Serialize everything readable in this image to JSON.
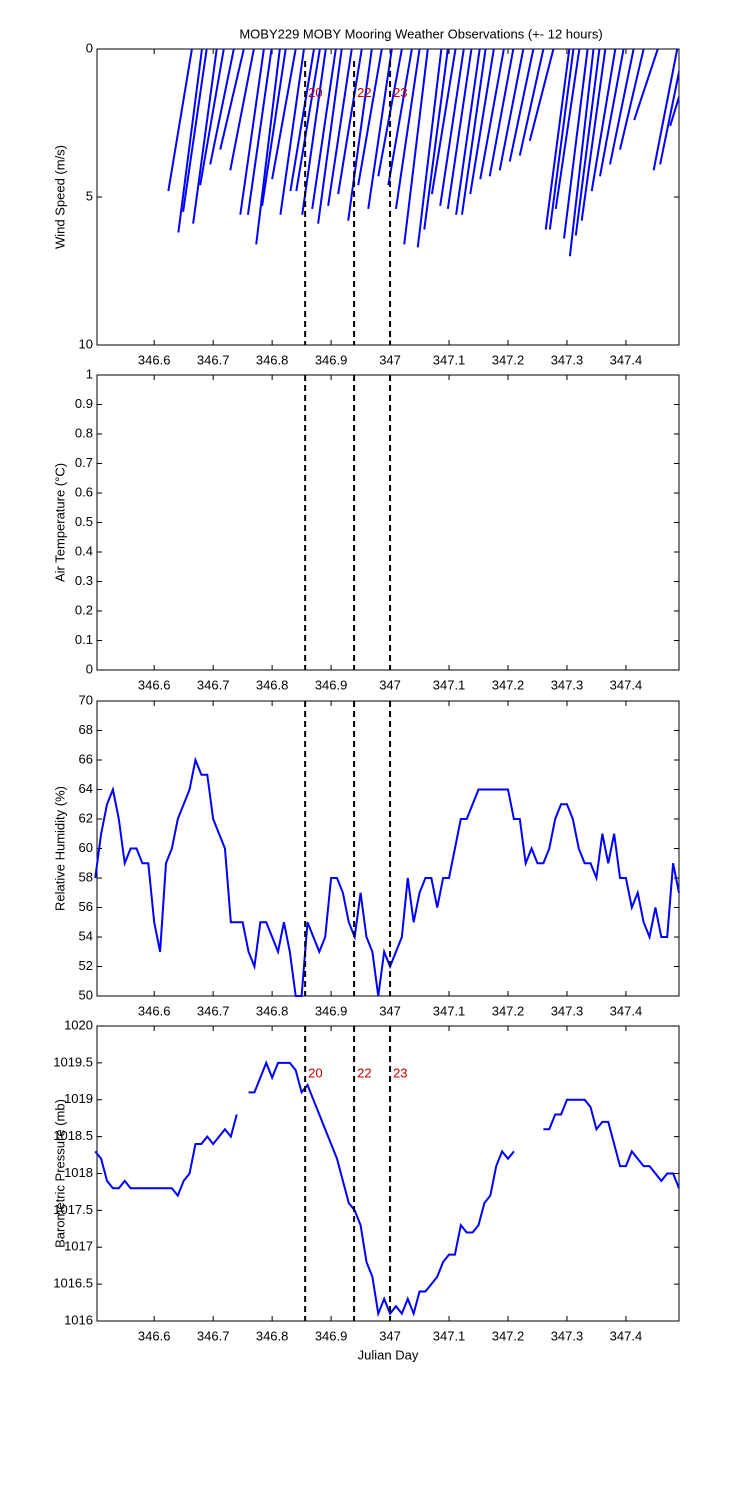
{
  "chart_data": [
    {
      "type": "stick",
      "title": "MOBY229 MOBY Mooring Weather Observations (+- 12 hours)",
      "ylabel": "Wind Speed (m/s)",
      "color": "#0000ff",
      "xlim": [
        346.503,
        347.49
      ],
      "xticks": [
        346.6,
        346.7,
        346.8,
        346.9,
        347,
        347.1,
        347.2,
        347.3,
        347.4
      ],
      "ylim": [
        0,
        10
      ],
      "yreverse": true,
      "yticks": [
        0,
        5,
        10
      ],
      "x": [
        346.624,
        346.641,
        346.649,
        346.666,
        346.678,
        346.695,
        346.712,
        346.729,
        346.746,
        346.759,
        346.773,
        346.783,
        346.8,
        346.814,
        346.831,
        346.841,
        346.851,
        346.868,
        346.878,
        346.895,
        346.912,
        346.929,
        346.946,
        346.963,
        346.98,
        346.997,
        347.01,
        347.024,
        347.047,
        347.058,
        347.071,
        347.085,
        347.098,
        347.112,
        347.122,
        347.136,
        347.153,
        347.169,
        347.186,
        347.203,
        347.22,
        347.237,
        347.264,
        347.271,
        347.281,
        347.295,
        347.305,
        347.315,
        347.325,
        347.342,
        347.356,
        347.373,
        347.39,
        347.414,
        347.447,
        347.458,
        347.475
      ],
      "x_base": [
        346.664,
        346.681,
        346.689,
        346.706,
        346.718,
        346.735,
        346.752,
        346.769,
        346.786,
        346.799,
        346.813,
        346.823,
        346.84,
        346.854,
        346.871,
        346.881,
        346.891,
        346.908,
        346.918,
        346.935,
        346.952,
        346.969,
        346.986,
        347.003,
        347.02,
        347.037,
        347.05,
        347.064,
        347.087,
        347.098,
        347.111,
        347.125,
        347.138,
        347.152,
        347.162,
        347.176,
        347.193,
        347.209,
        347.226,
        347.243,
        347.26,
        347.277,
        347.304,
        347.311,
        347.321,
        347.335,
        347.345,
        347.355,
        347.365,
        347.382,
        347.396,
        347.413,
        347.43,
        347.454,
        347.487,
        347.498,
        347.515
      ],
      "values": [
        4.8,
        6.2,
        5.5,
        5.9,
        4.6,
        3.9,
        3.4,
        4.1,
        5.6,
        5.6,
        6.6,
        5.3,
        4.4,
        5.6,
        4.8,
        4.8,
        5.6,
        5.4,
        5.9,
        5.3,
        4.9,
        5.8,
        4.6,
        5.4,
        4.3,
        4.6,
        5.4,
        6.6,
        6.7,
        6.1,
        4.9,
        5.3,
        5.4,
        5.6,
        5.6,
        4.9,
        4.4,
        4.3,
        4.1,
        3.8,
        3.6,
        3.1,
        6.1,
        6.1,
        5.4,
        6.4,
        7.0,
        6.3,
        5.8,
        4.8,
        4.3,
        3.9,
        3.4,
        2.4,
        4.1,
        3.9,
        2.6
      ],
      "markers": [
        346.856,
        346.939,
        347.0
      ],
      "marker_labels": [
        "20",
        "22",
        "23"
      ],
      "marker_label_y": 1.5
    },
    {
      "type": "line",
      "ylabel": "Air Temperature (°C)",
      "color": "#0000ff",
      "xlim": [
        346.503,
        347.49
      ],
      "xticks": [
        346.6,
        346.7,
        346.8,
        346.9,
        347,
        347.1,
        347.2,
        347.3,
        347.4
      ],
      "ylim": [
        0,
        1
      ],
      "yticks": [
        0,
        0.1,
        0.2,
        0.3,
        0.4,
        0.5,
        0.6,
        0.7,
        0.8,
        0.9,
        1
      ],
      "markers": [
        346.856,
        346.939,
        347.0
      ]
    },
    {
      "type": "line",
      "ylabel": "Relative Humidity (%)",
      "color": "#0000ff",
      "xlim": [
        346.503,
        347.49
      ],
      "xticks": [
        346.6,
        346.7,
        346.8,
        346.9,
        347,
        347.1,
        347.2,
        347.3,
        347.4
      ],
      "ylim": [
        50,
        70
      ],
      "yticks": [
        50,
        52,
        54,
        56,
        58,
        60,
        62,
        64,
        66,
        68,
        70
      ],
      "x": [
        346.5,
        346.51,
        346.52,
        346.53,
        346.54,
        346.55,
        346.56,
        346.57,
        346.58,
        346.59,
        346.6,
        346.61,
        346.62,
        346.63,
        346.64,
        346.65,
        346.66,
        346.67,
        346.68,
        346.69,
        346.7,
        346.71,
        346.72,
        346.73,
        346.74,
        346.75,
        346.76,
        346.77,
        346.78,
        346.79,
        346.8,
        346.81,
        346.82,
        346.83,
        346.84,
        346.85,
        346.86,
        346.87,
        346.88,
        346.89,
        346.9,
        346.91,
        346.92,
        346.93,
        346.94,
        346.95,
        346.96,
        346.97,
        346.98,
        346.99,
        347,
        347.01,
        347.02,
        347.03,
        347.04,
        347.05,
        347.06,
        347.07,
        347.08,
        347.09,
        347.1,
        347.11,
        347.12,
        347.13,
        347.14,
        347.15,
        347.16,
        347.17,
        347.18,
        347.19,
        347.2,
        347.21,
        347.22,
        347.23,
        347.24,
        347.25,
        347.26,
        347.27,
        347.28,
        347.29,
        347.3,
        347.31,
        347.32,
        347.33,
        347.34,
        347.35,
        347.36,
        347.37,
        347.38,
        347.39,
        347.4,
        347.41,
        347.42,
        347.43,
        347.44,
        347.45,
        347.46,
        347.47,
        347.48,
        347.49
      ],
      "values": [
        58,
        61,
        63,
        64,
        62,
        59,
        60,
        60,
        59,
        59,
        55,
        53,
        59,
        60,
        62,
        63,
        64,
        66,
        65,
        65,
        62,
        61,
        60,
        55,
        55,
        55,
        53,
        52,
        55,
        55,
        54,
        53,
        55,
        53,
        50,
        50,
        55,
        54,
        53,
        54,
        58,
        58,
        57,
        55,
        54,
        57,
        54,
        53,
        50,
        53,
        52,
        53,
        54,
        58,
        55,
        57,
        58,
        58,
        56,
        58,
        58,
        60,
        62,
        62,
        63,
        64,
        64,
        64,
        64,
        64,
        64,
        62,
        62,
        59,
        60,
        59,
        59,
        60,
        62,
        63,
        63,
        62,
        60,
        59,
        59,
        58,
        61,
        59,
        61,
        58,
        58,
        56,
        57,
        55,
        54,
        56,
        54,
        54,
        59,
        57
      ],
      "markers": [
        346.856,
        346.939,
        347.0
      ]
    },
    {
      "type": "line",
      "ylabel": "Barometric Pressure (mb)",
      "xlabel": "Julian Day",
      "color": "#0000ff",
      "xlim": [
        346.503,
        347.49
      ],
      "xticks": [
        346.6,
        346.7,
        346.8,
        346.9,
        347,
        347.1,
        347.2,
        347.3,
        347.4
      ],
      "ylim": [
        1016,
        1020
      ],
      "yticks": [
        1016,
        1016.5,
        1017,
        1017.5,
        1018,
        1018.5,
        1019,
        1019.5,
        1020
      ],
      "x": [
        346.5,
        346.51,
        346.52,
        346.53,
        346.54,
        346.55,
        346.56,
        346.57,
        346.58,
        346.59,
        346.6,
        346.61,
        346.62,
        346.63,
        346.64,
        346.65,
        346.66,
        346.67,
        346.68,
        346.69,
        346.7,
        346.71,
        346.72,
        346.73,
        346.74,
        346.75,
        346.76,
        346.77,
        346.78,
        346.79,
        346.8,
        346.81,
        346.82,
        346.83,
        346.84,
        346.85,
        346.86,
        346.87,
        346.88,
        346.89,
        346.9,
        346.91,
        346.92,
        346.93,
        346.94,
        346.95,
        346.96,
        346.97,
        346.98,
        346.99,
        347,
        347.01,
        347.02,
        347.03,
        347.04,
        347.05,
        347.06,
        347.07,
        347.08,
        347.09,
        347.1,
        347.11,
        347.12,
        347.13,
        347.14,
        347.15,
        347.16,
        347.17,
        347.18,
        347.19,
        347.2,
        347.21,
        347.22,
        347.23,
        347.24,
        347.25,
        347.26,
        347.27,
        347.28,
        347.29,
        347.3,
        347.31,
        347.32,
        347.33,
        347.34,
        347.35,
        347.36,
        347.37,
        347.38,
        347.39,
        347.4,
        347.41,
        347.42,
        347.43,
        347.44,
        347.45,
        347.46,
        347.47,
        347.48,
        347.49
      ],
      "values": [
        1018.3,
        1018.2,
        1017.9,
        1017.8,
        1017.8,
        1017.9,
        1017.8,
        1017.8,
        1017.8,
        1017.8,
        1017.8,
        1017.8,
        1017.8,
        1017.8,
        1017.7,
        1017.9,
        1018,
        1018.4,
        1018.4,
        1018.5,
        1018.4,
        1018.5,
        1018.6,
        1018.5,
        1018.8,
        null,
        1019.1,
        1019.1,
        1019.3,
        1019.5,
        1019.3,
        1019.5,
        1019.5,
        1019.5,
        1019.4,
        1019.1,
        1019.2,
        1019,
        1018.8,
        1018.6,
        1018.4,
        1018.2,
        1017.9,
        1017.6,
        1017.5,
        1017.3,
        1016.8,
        1016.6,
        1016.1,
        1016.3,
        1016.1,
        1016.2,
        1016.1,
        1016.3,
        1016.1,
        1016.4,
        1016.4,
        1016.5,
        1016.6,
        1016.8,
        1016.9,
        1016.9,
        1017.3,
        1017.2,
        1017.2,
        1017.3,
        1017.6,
        1017.7,
        1018.1,
        1018.3,
        1018.2,
        1018.3,
        null,
        null,
        null,
        null,
        1018.6,
        1018.6,
        1018.8,
        1018.8,
        1019,
        1019,
        1019,
        1019,
        1018.9,
        1018.6,
        1018.7,
        1018.7,
        1018.4,
        1018.1,
        1018.1,
        1018.3,
        1018.2,
        1018.1,
        1018.1,
        1018,
        1017.9,
        1018,
        1018,
        1017.8
      ],
      "markers": [
        346.856,
        346.939,
        347.0
      ],
      "marker_labels": [
        "20",
        "22",
        "23"
      ],
      "marker_label_y": 1019.35
    }
  ]
}
